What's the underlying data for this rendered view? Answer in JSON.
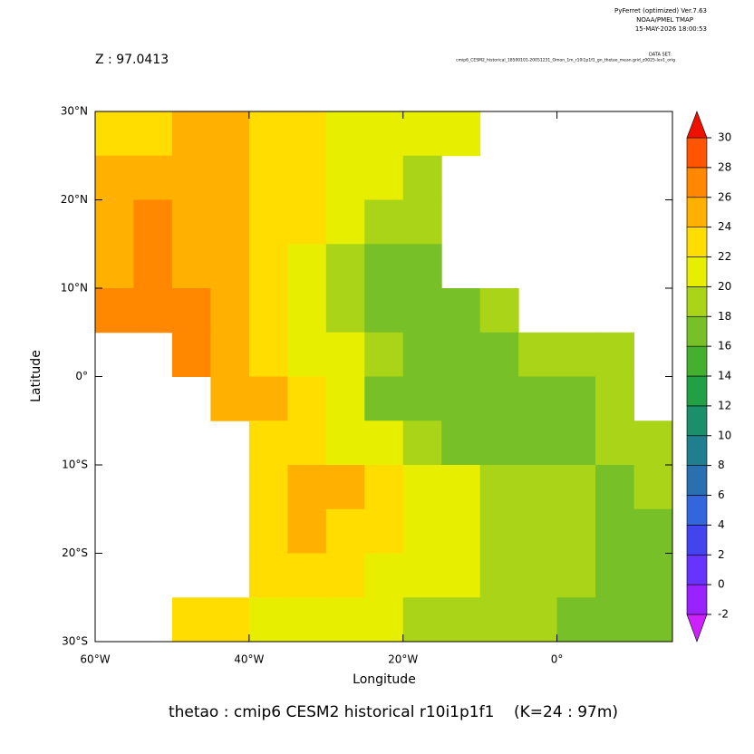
{
  "chart_data": {
    "type": "heatmap",
    "header": [
      "PyFerret (optimized) Ver.7.63",
      "NOAA/PMEL TMAP",
      "15-MAY-2026 18:00:53"
    ],
    "subtitle": "Z : 97.0413",
    "dataset_label": "DATA SET:",
    "dataset": "cmip6_CESM2_historical_18500101-20051231_Omon_1m_r10i1p1f1_gn_thetao_mean.grid_z0025-lev1_orig",
    "title": "thetao : cmip6 CESM2 historical r10i1p1f1    (K=24 : 97m)",
    "xlabel": "Longitude",
    "ylabel": "Latitude",
    "x": [
      -57.5,
      -52.5,
      -47.5,
      -42.5,
      -37.5,
      -32.5,
      -27.5,
      -22.5,
      -17.5,
      -12.5,
      -7.5,
      -2.5,
      2.5,
      7.5,
      12.5
    ],
    "y": [
      27.5,
      22.5,
      17.5,
      12.5,
      7.5,
      2.5,
      -2.5,
      -7.5,
      -12.5,
      -17.5,
      -22.5,
      -27.5
    ],
    "values": [
      [
        23,
        23,
        24,
        24,
        23,
        22,
        21,
        21,
        20,
        20,
        null,
        null,
        null,
        null,
        null
      ],
      [
        24,
        25,
        25,
        24,
        23,
        22,
        21,
        20,
        19,
        null,
        null,
        null,
        null,
        null,
        null
      ],
      [
        25,
        26,
        25,
        24,
        23,
        22,
        20,
        19,
        18,
        null,
        null,
        null,
        null,
        null,
        null
      ],
      [
        25,
        26,
        25,
        24,
        23,
        21,
        19,
        17,
        17,
        null,
        null,
        null,
        null,
        null,
        null
      ],
      [
        26,
        27,
        26,
        24,
        22,
        20,
        18,
        17,
        17,
        17,
        18,
        null,
        null,
        null,
        null
      ],
      [
        null,
        null,
        27,
        25,
        23,
        21,
        20,
        18,
        17,
        17,
        17,
        18,
        18,
        19,
        null
      ],
      [
        null,
        null,
        null,
        25,
        24,
        22,
        20,
        17,
        16,
        16,
        16,
        17,
        17,
        18,
        null
      ],
      [
        null,
        null,
        null,
        null,
        23,
        22,
        21,
        20,
        18,
        17,
        17,
        17,
        17,
        18,
        18
      ],
      [
        null,
        null,
        null,
        null,
        23,
        24,
        24,
        23,
        21,
        20,
        19,
        18,
        18,
        17,
        18
      ],
      [
        null,
        null,
        null,
        null,
        23,
        24,
        23,
        22,
        21,
        20,
        19,
        18,
        18,
        17,
        17
      ],
      [
        null,
        null,
        null,
        null,
        23,
        22,
        22,
        21,
        20,
        20,
        19,
        18,
        18,
        17,
        16
      ],
      [
        null,
        null,
        22,
        22,
        21,
        21,
        20,
        20,
        19,
        19,
        18,
        18,
        17,
        17,
        16
      ]
    ],
    "xlim": [
      -60,
      15
    ],
    "ylim": [
      -30,
      30
    ],
    "xticks": [
      {
        "value": -60,
        "label": "60°W"
      },
      {
        "value": -40,
        "label": "40°W"
      },
      {
        "value": -20,
        "label": "20°W"
      },
      {
        "value": 0,
        "label": "0°"
      }
    ],
    "yticks": [
      {
        "value": -30,
        "label": "30°S"
      },
      {
        "value": -20,
        "label": "20°S"
      },
      {
        "value": -10,
        "label": "10°S"
      },
      {
        "value": 0,
        "label": "0°"
      },
      {
        "value": 10,
        "label": "10°N"
      },
      {
        "value": 20,
        "label": "20°N"
      },
      {
        "value": 30,
        "label": "30°N"
      }
    ],
    "colorbar": {
      "ticks": [
        -2,
        0,
        2,
        4,
        6,
        8,
        10,
        12,
        14,
        16,
        18,
        20,
        22,
        24,
        26,
        28,
        30
      ],
      "colors": [
        "#cc22ff",
        "#9922ff",
        "#6633ff",
        "#4444ee",
        "#3366dd",
        "#2a70b0",
        "#207f8f",
        "#1a8f6a",
        "#22a045",
        "#44b030",
        "#77c028",
        "#aad418",
        "#e8ee00",
        "#ffdd00",
        "#ffb000",
        "#ff8800",
        "#ff5500",
        "#ee1100"
      ]
    }
  }
}
